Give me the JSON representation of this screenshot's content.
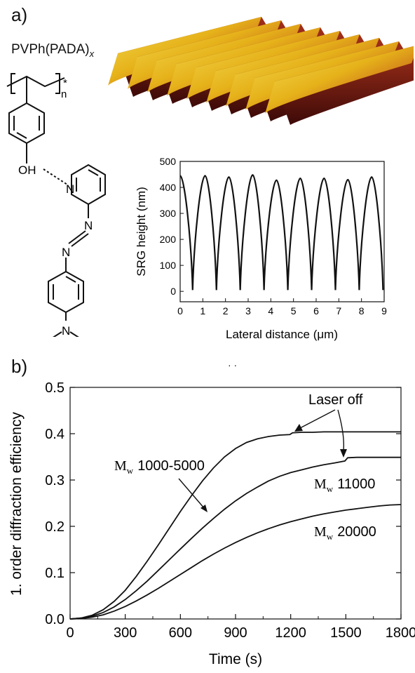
{
  "panel_a": {
    "label": "a)",
    "polymer": {
      "name": "PVPh(PADA)",
      "subscript": "x"
    },
    "chem": {
      "oh": "OH",
      "n_ring": "N",
      "n1": "N",
      "n2": "N",
      "n_amine": "N",
      "repeat": "n",
      "star": "*"
    }
  },
  "panel_b": {
    "label": "b)"
  },
  "chart_data": [
    {
      "type": "line",
      "title": "",
      "xlabel": "Lateral distance (μm)",
      "ylabel": "SRG height (nm)",
      "xlim": [
        0,
        9
      ],
      "ylim": [
        -40,
        500
      ],
      "x_ticks": [
        0,
        1,
        2,
        3,
        4,
        5,
        6,
        7,
        8,
        9
      ],
      "y_ticks": [
        0,
        100,
        200,
        300,
        400,
        500
      ],
      "peaks": [
        {
          "x": 0.0,
          "y": 445
        },
        {
          "x": 1.1,
          "y": 445
        },
        {
          "x": 2.15,
          "y": 440
        },
        {
          "x": 3.2,
          "y": 448
        },
        {
          "x": 4.25,
          "y": 428
        },
        {
          "x": 5.3,
          "y": 435
        },
        {
          "x": 6.35,
          "y": 435
        },
        {
          "x": 7.4,
          "y": 430
        },
        {
          "x": 8.45,
          "y": 440
        }
      ],
      "troughs": [
        {
          "x": 0.55,
          "y": 5
        },
        {
          "x": 1.6,
          "y": 5
        },
        {
          "x": 2.65,
          "y": 5
        },
        {
          "x": 3.7,
          "y": 5
        },
        {
          "x": 4.75,
          "y": 5
        },
        {
          "x": 5.8,
          "y": 5
        },
        {
          "x": 6.85,
          "y": 5
        },
        {
          "x": 7.9,
          "y": 5
        },
        {
          "x": 8.95,
          "y": 5
        }
      ]
    },
    {
      "type": "line",
      "title": "",
      "xlabel": "Time (s)",
      "ylabel": "1. order diffraction efficiency",
      "xlim": [
        0,
        1800
      ],
      "ylim": [
        0.0,
        0.5
      ],
      "x_ticks": [
        "0",
        "300",
        "600",
        "900",
        "1200",
        "1500",
        "1800"
      ],
      "y_ticks": [
        "0.0",
        "0.1",
        "0.2",
        "0.3",
        "0.4",
        "0.5"
      ],
      "series": [
        {
          "name": "1000-5000",
          "x": [
            0,
            60,
            120,
            180,
            240,
            300,
            360,
            420,
            480,
            540,
            600,
            660,
            720,
            780,
            840,
            900,
            960,
            1020,
            1080,
            1140,
            1195,
            1210,
            1260,
            1320,
            1380,
            1440,
            1500,
            1560,
            1620,
            1680,
            1740,
            1800
          ],
          "y": [
            0.0,
            0.002,
            0.008,
            0.02,
            0.038,
            0.062,
            0.092,
            0.125,
            0.16,
            0.196,
            0.232,
            0.266,
            0.298,
            0.326,
            0.35,
            0.368,
            0.381,
            0.389,
            0.394,
            0.397,
            0.398,
            0.402,
            0.403,
            0.403,
            0.404,
            0.404,
            0.404,
            0.404,
            0.404,
            0.404,
            0.404,
            0.404
          ]
        },
        {
          "name": "11000",
          "x": [
            0,
            60,
            120,
            180,
            240,
            300,
            360,
            420,
            480,
            540,
            600,
            660,
            720,
            780,
            840,
            900,
            960,
            1020,
            1080,
            1140,
            1200,
            1260,
            1320,
            1380,
            1440,
            1495,
            1510,
            1560,
            1620,
            1680,
            1740,
            1800
          ],
          "y": [
            0.0,
            0.002,
            0.006,
            0.014,
            0.026,
            0.042,
            0.061,
            0.082,
            0.105,
            0.128,
            0.151,
            0.174,
            0.196,
            0.217,
            0.237,
            0.255,
            0.271,
            0.285,
            0.298,
            0.308,
            0.316,
            0.322,
            0.328,
            0.333,
            0.337,
            0.341,
            0.348,
            0.349,
            0.349,
            0.349,
            0.349,
            0.349
          ]
        },
        {
          "name": "20000",
          "x": [
            0,
            60,
            120,
            180,
            240,
            300,
            360,
            420,
            480,
            540,
            600,
            660,
            720,
            780,
            840,
            900,
            960,
            1020,
            1080,
            1140,
            1200,
            1260,
            1320,
            1380,
            1440,
            1500,
            1560,
            1620,
            1680,
            1740,
            1800
          ],
          "y": [
            0.0,
            0.001,
            0.004,
            0.009,
            0.017,
            0.027,
            0.039,
            0.052,
            0.066,
            0.081,
            0.096,
            0.111,
            0.126,
            0.14,
            0.153,
            0.165,
            0.176,
            0.186,
            0.195,
            0.203,
            0.21,
            0.216,
            0.222,
            0.227,
            0.231,
            0.235,
            0.238,
            0.241,
            0.244,
            0.246,
            0.247
          ]
        }
      ],
      "labels": {
        "mw_main": "M",
        "mw_sub": "w",
        "laser_off": "Laser off",
        "stray": "· ·"
      }
    }
  ]
}
